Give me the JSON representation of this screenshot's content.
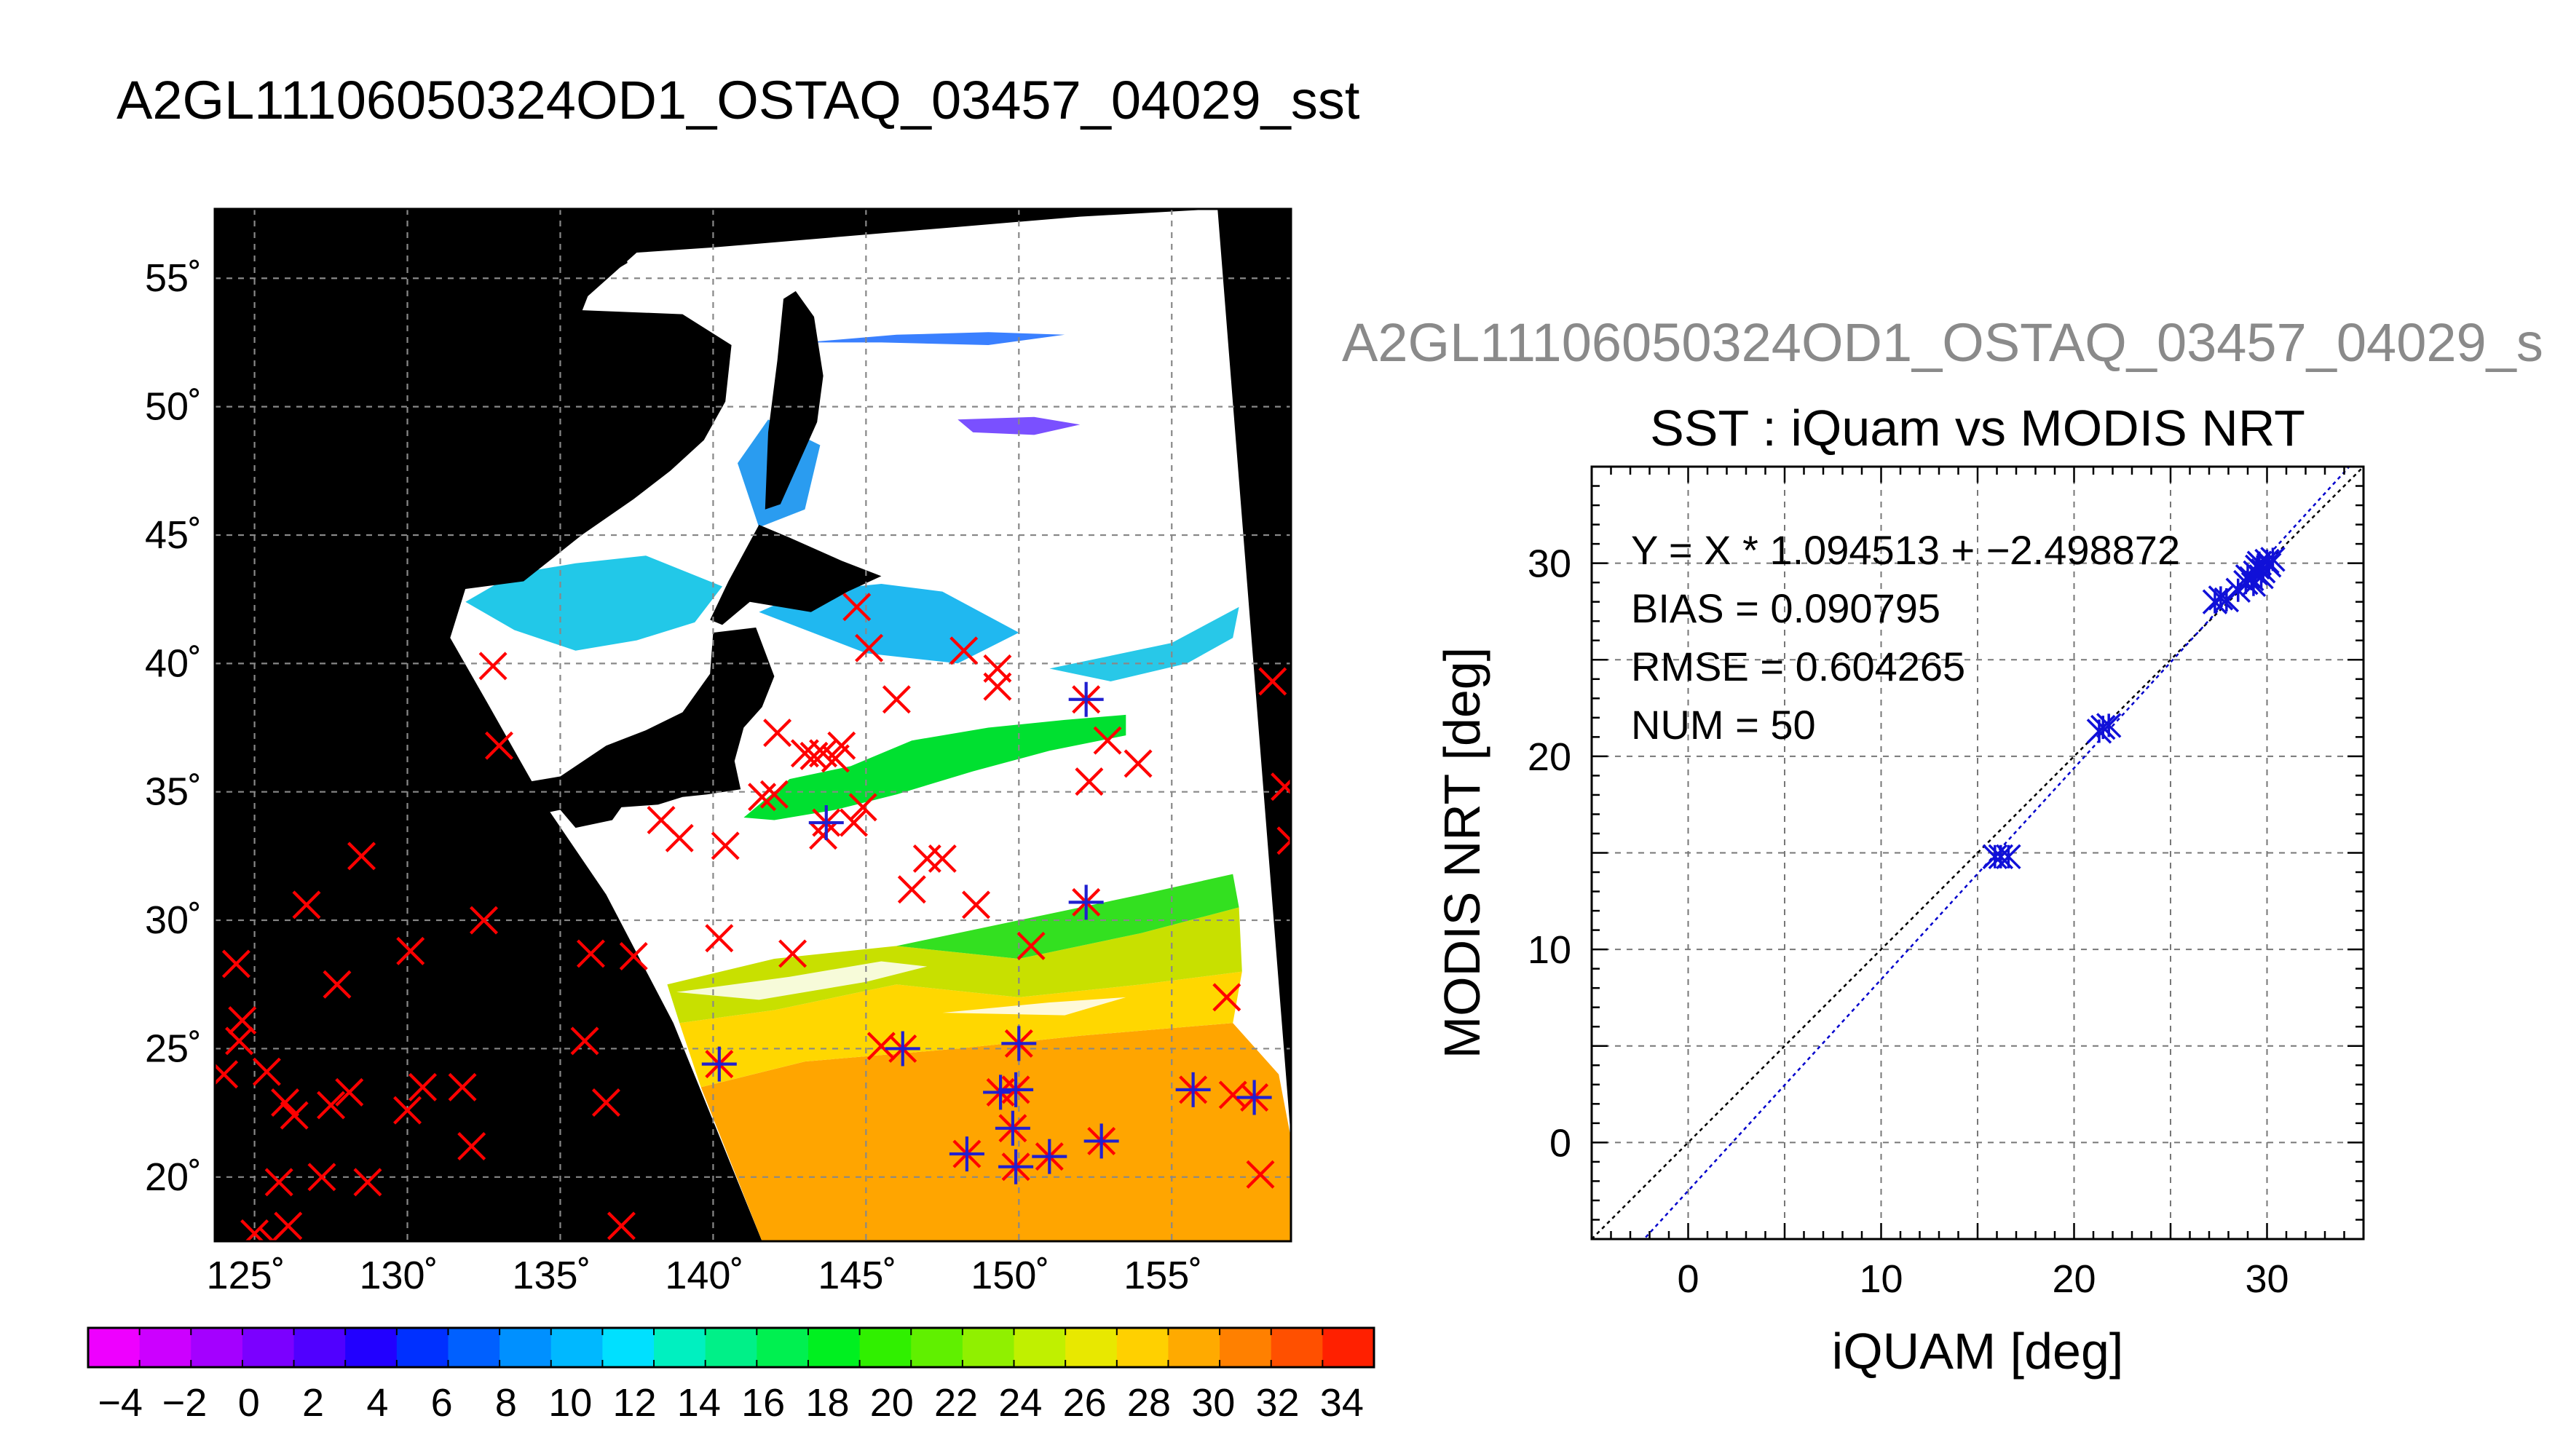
{
  "main_title": "A2GL11106050324OD1_OSTAQ_03457_04029_sst",
  "sub_title": "A2GL11106050324OD1_OSTAQ_03457_04029_s",
  "map": {
    "lon_ticks": [
      "125˚",
      "130˚",
      "135˚",
      "140˚",
      "145˚",
      "150˚",
      "155˚"
    ],
    "lat_ticks": [
      "20˚",
      "25˚",
      "30˚",
      "35˚",
      "40˚",
      "45˚",
      "50˚",
      "55˚"
    ],
    "lon_range": [
      123.7,
      158.9
    ],
    "lat_range": [
      17.5,
      57.7
    ],
    "swath_edge": [
      [
        158.9,
        21.5
      ],
      [
        156.5,
        57.7
      ]
    ],
    "xmarks_red": [
      [
        124.0,
        24.0
      ],
      [
        124.4,
        28.3
      ],
      [
        124.5,
        25.3
      ],
      [
        124.6,
        26.1
      ],
      [
        125.0,
        17.8
      ],
      [
        125.4,
        24.1
      ],
      [
        125.6,
        17.5
      ],
      [
        125.8,
        19.8
      ],
      [
        126.0,
        22.9
      ],
      [
        126.1,
        18.1
      ],
      [
        126.3,
        22.4
      ],
      [
        126.7,
        30.6
      ],
      [
        127.2,
        20.0
      ],
      [
        127.5,
        22.8
      ],
      [
        127.7,
        27.5
      ],
      [
        128.1,
        23.3
      ],
      [
        128.5,
        32.5
      ],
      [
        128.7,
        19.8
      ],
      [
        130.0,
        22.6
      ],
      [
        130.1,
        28.8
      ],
      [
        130.5,
        23.5
      ],
      [
        131.8,
        23.5
      ],
      [
        132.1,
        21.2
      ],
      [
        132.5,
        30.0
      ],
      [
        132.8,
        39.9
      ],
      [
        133.0,
        36.8
      ],
      [
        135.8,
        25.3
      ],
      [
        136.0,
        28.7
      ],
      [
        136.5,
        22.9
      ],
      [
        137.0,
        18.1
      ],
      [
        137.4,
        28.6
      ],
      [
        138.3,
        33.9
      ],
      [
        138.9,
        33.2
      ],
      [
        140.2,
        29.3
      ],
      [
        140.4,
        32.9
      ],
      [
        141.6,
        34.8
      ],
      [
        142.0,
        34.9
      ],
      [
        142.1,
        37.3
      ],
      [
        142.6,
        28.7
      ],
      [
        143.0,
        36.5
      ],
      [
        143.3,
        36.4
      ],
      [
        143.6,
        36.5
      ],
      [
        143.6,
        33.3
      ],
      [
        144.0,
        36.3
      ],
      [
        144.2,
        36.8
      ],
      [
        144.6,
        33.8
      ],
      [
        144.7,
        42.2
      ],
      [
        144.9,
        34.4
      ],
      [
        145.1,
        40.6
      ],
      [
        145.5,
        25.1
      ],
      [
        146.0,
        38.6
      ],
      [
        146.5,
        31.2
      ],
      [
        147.0,
        32.4
      ],
      [
        147.5,
        32.4
      ],
      [
        148.2,
        40.5
      ],
      [
        148.6,
        30.6
      ],
      [
        149.3,
        39.1
      ],
      [
        150.4,
        29.0
      ],
      [
        152.3,
        35.4
      ],
      [
        152.9,
        37.0
      ],
      [
        153.9,
        36.1
      ],
      [
        156.8,
        27.0
      ],
      [
        157.0,
        23.2
      ],
      [
        157.9,
        20.1
      ],
      [
        158.3,
        39.3
      ],
      [
        158.7,
        35.2
      ],
      [
        158.9,
        33.1
      ],
      [
        149.3,
        39.8
      ]
    ],
    "xmarks_blue": [
      [
        140.2,
        24.4
      ],
      [
        143.7,
        33.8
      ],
      [
        146.2,
        25.0
      ],
      [
        148.3,
        20.9
      ],
      [
        149.4,
        23.3
      ],
      [
        149.8,
        21.9
      ],
      [
        149.9,
        20.4
      ],
      [
        150.0,
        25.2
      ],
      [
        149.9,
        23.4
      ],
      [
        151.0,
        20.8
      ],
      [
        152.2,
        38.6
      ],
      [
        152.2,
        30.7
      ],
      [
        152.7,
        21.4
      ],
      [
        155.7,
        23.4
      ],
      [
        157.7,
        23.1
      ]
    ]
  },
  "colorbar": {
    "tick_labels": [
      "−4",
      "−2",
      "0",
      "2",
      "4",
      "6",
      "8",
      "10",
      "12",
      "14",
      "16",
      "18",
      "20",
      "22",
      "24",
      "26",
      "28",
      "30",
      "32",
      "34"
    ],
    "range": [
      -5,
      35
    ],
    "colors": [
      "#ee00ff",
      "#cc00ff",
      "#a400ff",
      "#7b00ff",
      "#5000ff",
      "#2200ff",
      "#0030ff",
      "#0060ff",
      "#0090ff",
      "#00b8ff",
      "#00e0ff",
      "#00f0c0",
      "#00f088",
      "#00f050",
      "#00f020",
      "#30f000",
      "#60f000",
      "#90f000",
      "#c0f000",
      "#e8e800",
      "#ffd000",
      "#ffaa00",
      "#ff8000",
      "#ff5000",
      "#ff2000"
    ]
  },
  "chart_data": {
    "type": "scatter",
    "title": "SST : iQuam vs MODIS NRT",
    "xlabel": "iQUAM [deg]",
    "ylabel": "MODIS NRT [deg]",
    "xlim": [
      -5,
      35
    ],
    "ylim": [
      -5,
      35
    ],
    "xticks": [
      0,
      10,
      20,
      30
    ],
    "yticks": [
      0,
      10,
      20,
      30
    ],
    "grid": true,
    "annotations": [
      "Y = X * 1.094513 + −2.498872",
      "BIAS = 0.090795",
      "RMSE = 0.604265",
      "NUM = 50"
    ],
    "fit": {
      "slope": 1.094513,
      "intercept": -2.498872
    },
    "series": [
      {
        "values_xy": [
          [
            15.9,
            14.8
          ],
          [
            16.2,
            14.8
          ],
          [
            16.6,
            14.8
          ],
          [
            21.3,
            21.3
          ],
          [
            21.5,
            21.5
          ],
          [
            21.8,
            21.6
          ],
          [
            27.3,
            28.0
          ],
          [
            27.6,
            28.2
          ],
          [
            27.9,
            28.1
          ],
          [
            28.5,
            28.6
          ],
          [
            28.9,
            29.0
          ],
          [
            29.2,
            29.2
          ],
          [
            29.4,
            29.5
          ],
          [
            29.5,
            29.8
          ],
          [
            29.6,
            30.0
          ],
          [
            29.7,
            29.3
          ],
          [
            29.8,
            29.6
          ],
          [
            30.0,
            30.1
          ],
          [
            30.1,
            29.9
          ],
          [
            30.3,
            30.2
          ],
          [
            29.3,
            28.9
          ],
          [
            29.0,
            29.3
          ]
        ]
      }
    ]
  }
}
